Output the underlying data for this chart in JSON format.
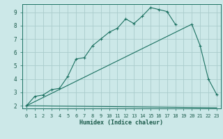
{
  "xlabel": "Humidex (Indice chaleur)",
  "bg_color": "#cce8e8",
  "grid_color": "#aacccc",
  "line_color": "#1a7060",
  "xlim": [
    -0.5,
    23.5
  ],
  "ylim": [
    1.8,
    9.6
  ],
  "yticks": [
    2,
    3,
    4,
    5,
    6,
    7,
    8,
    9
  ],
  "xticks": [
    0,
    1,
    2,
    3,
    4,
    5,
    6,
    7,
    8,
    9,
    10,
    11,
    12,
    13,
    14,
    15,
    16,
    17,
    18,
    19,
    20,
    21,
    22,
    23
  ],
  "line1_x": [
    0,
    1,
    2,
    3,
    4,
    5,
    6,
    7,
    8,
    9,
    10,
    11,
    12,
    13,
    14,
    15,
    16,
    17,
    18
  ],
  "line1_y": [
    2.0,
    2.7,
    2.8,
    3.2,
    3.3,
    4.2,
    5.5,
    5.6,
    6.5,
    7.0,
    7.5,
    7.8,
    8.5,
    8.15,
    8.7,
    9.35,
    9.2,
    9.05,
    8.1
  ],
  "line2_x": [
    0,
    20,
    21,
    22,
    23
  ],
  "line2_y": [
    2.0,
    8.1,
    6.5,
    4.0,
    2.85
  ],
  "line3_x": [
    0,
    23
  ],
  "line3_y": [
    2.0,
    1.85
  ]
}
